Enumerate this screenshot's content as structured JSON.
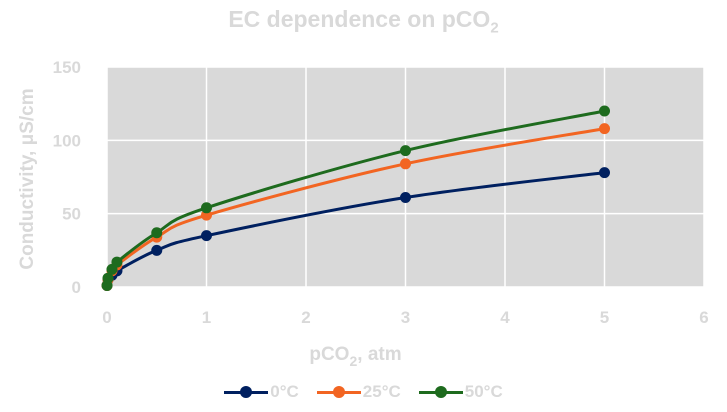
{
  "title": {
    "main": "EC dependence on pCO",
    "sub": "2"
  },
  "xlabel": {
    "main": "pCO",
    "sub": "2",
    "rest": ", atm"
  },
  "colors": {
    "plot_bg": "#d9d9d9",
    "grid": "#ffffff",
    "text": "#d9d9d9"
  },
  "chart_data": {
    "type": "line",
    "title": "EC dependence on pCO2",
    "xlabel": "pCO2, atm",
    "ylabel": "Conductivity, μS/cm",
    "xlim": [
      0,
      6
    ],
    "ylim": [
      0,
      150
    ],
    "xticks": [
      0,
      1,
      2,
      3,
      4,
      5,
      6
    ],
    "yticks": [
      0,
      50,
      100,
      150
    ],
    "grid": true,
    "legend": "bottom",
    "series": [
      {
        "name": "0°C",
        "color": "#002060",
        "points": [
          [
            0.0004,
            1
          ],
          [
            0.01,
            5
          ],
          [
            0.05,
            8
          ],
          [
            0.1,
            11
          ],
          [
            0.5,
            25
          ],
          [
            1,
            35
          ],
          [
            3,
            61
          ],
          [
            5,
            78
          ]
        ]
      },
      {
        "name": "25°C",
        "color": "#f26522",
        "points": [
          [
            0.0004,
            1
          ],
          [
            0.01,
            5
          ],
          [
            0.05,
            11
          ],
          [
            0.1,
            15
          ],
          [
            0.5,
            34
          ],
          [
            1,
            49
          ],
          [
            3,
            84
          ],
          [
            5,
            108
          ]
        ]
      },
      {
        "name": "50°C",
        "color": "#1e6b1e",
        "points": [
          [
            0.0004,
            1
          ],
          [
            0.01,
            6
          ],
          [
            0.05,
            12
          ],
          [
            0.1,
            17
          ],
          [
            0.5,
            37
          ],
          [
            1,
            54
          ],
          [
            3,
            93
          ],
          [
            5,
            120
          ]
        ]
      }
    ]
  }
}
